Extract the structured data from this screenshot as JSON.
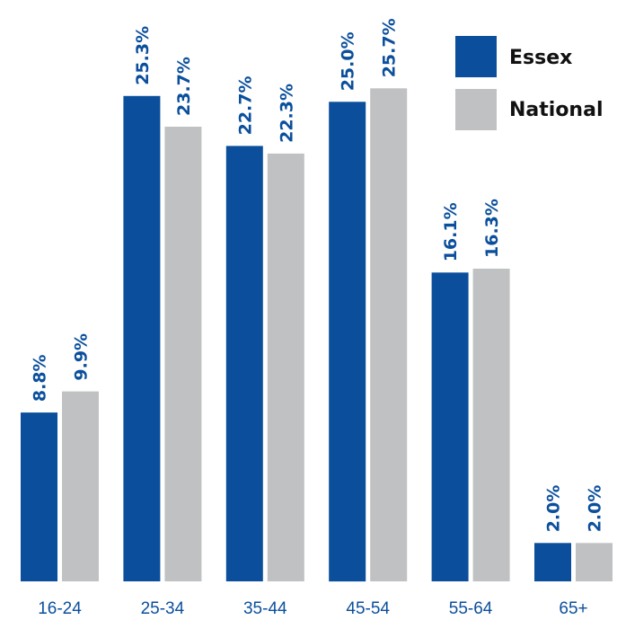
{
  "chart_data": {
    "type": "bar",
    "title": "",
    "xlabel": "",
    "ylabel": "",
    "categories": [
      "16-24",
      "25-34",
      "35-44",
      "45-54",
      "55-64",
      "65+"
    ],
    "series": [
      {
        "name": "Essex",
        "color": "#0b4f9c",
        "values": [
          8.8,
          25.3,
          22.7,
          25.0,
          16.1,
          2.0
        ],
        "labels": [
          "8.8%",
          "25.3%",
          "22.7%",
          "25.0%",
          "16.1%",
          "2.0%"
        ]
      },
      {
        "name": "National",
        "color": "#c0c1c3",
        "values": [
          9.9,
          23.7,
          22.3,
          25.7,
          16.3,
          2.0
        ],
        "labels": [
          "9.9%",
          "23.7%",
          "22.3%",
          "25.7%",
          "16.3%",
          "2.0%"
        ]
      }
    ],
    "ylim": [
      0,
      27
    ],
    "grid": false,
    "legend": "top-right"
  }
}
